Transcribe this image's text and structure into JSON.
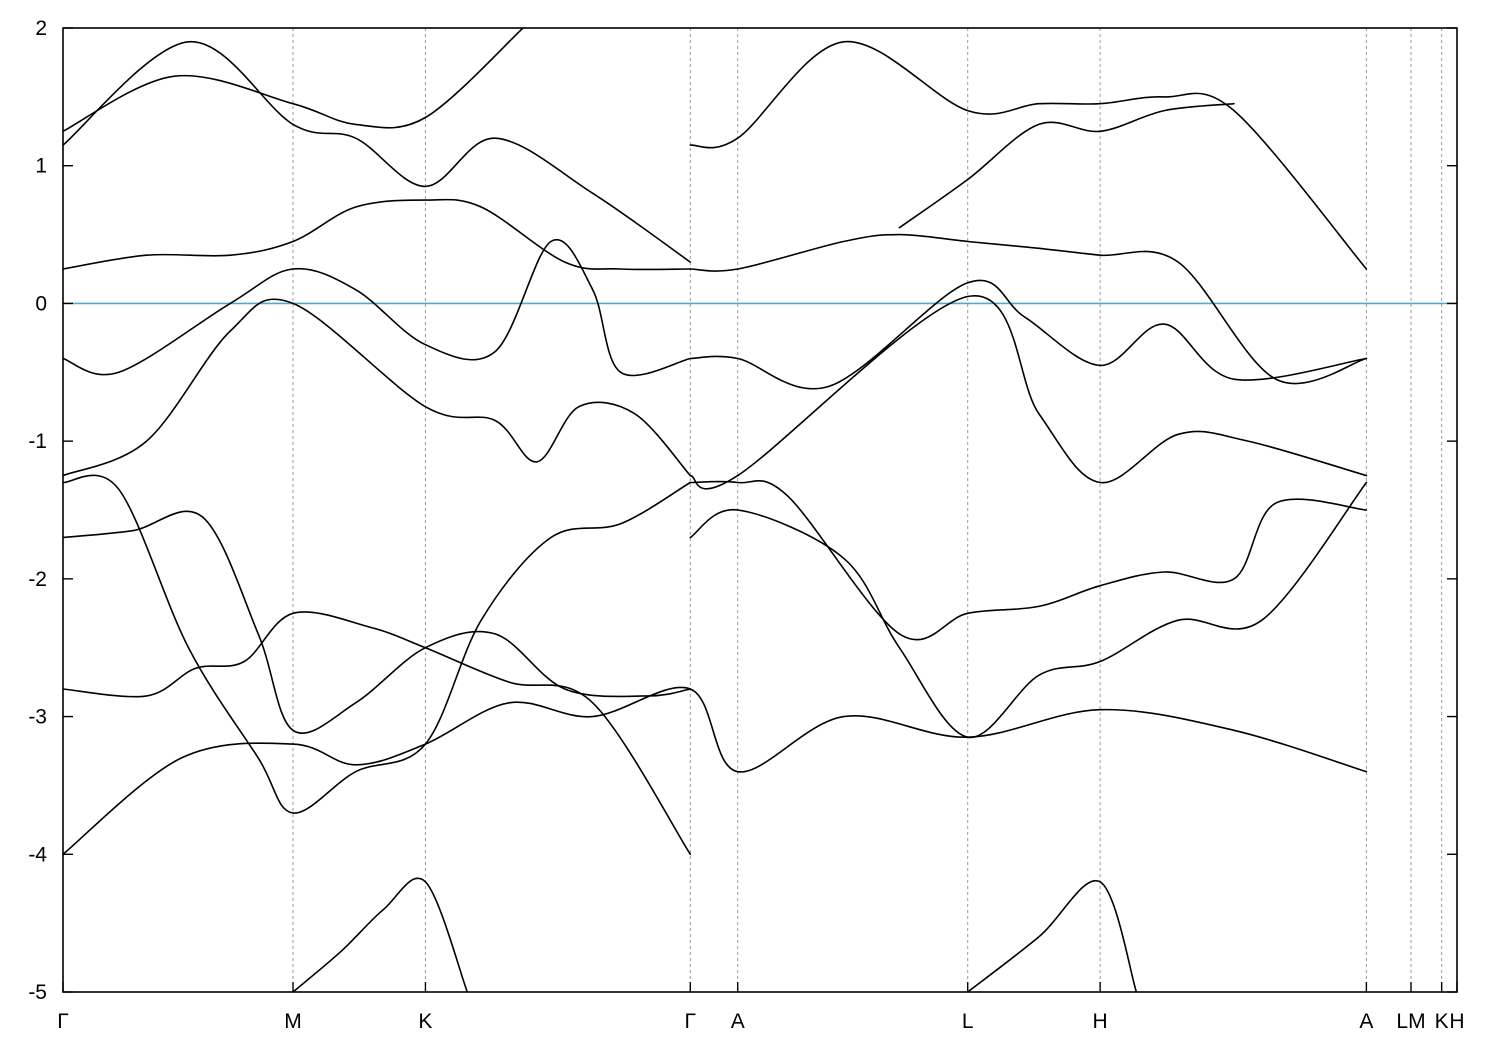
{
  "chart_data": {
    "type": "line",
    "title": "",
    "xlabel": "",
    "ylabel": "",
    "xlim": [
      0,
      1
    ],
    "ylim": [
      -5,
      2
    ],
    "y_ticks": [
      2,
      1,
      0,
      -1,
      -2,
      -3,
      -4,
      -5
    ],
    "y_tick_labels": [
      "2",
      "1",
      "0",
      "-1",
      "-2",
      "-3",
      "-4",
      "-5"
    ],
    "k_points": [
      {
        "label": "Γ",
        "x": 0.0
      },
      {
        "label": "M",
        "x": 0.165
      },
      {
        "label": "K",
        "x": 0.26
      },
      {
        "label": "Γ",
        "x": 0.45
      },
      {
        "label": "A",
        "x": 0.484
      },
      {
        "label": "L",
        "x": 0.649
      },
      {
        "label": "H",
        "x": 0.744
      },
      {
        "label": "A",
        "x": 0.935
      },
      {
        "label": "LM",
        "x": 0.967
      },
      {
        "label": "K",
        "x": 0.989
      },
      {
        "label": "H",
        "x": 1.0
      }
    ],
    "grid": false,
    "reference_line": {
      "y": 0,
      "color": "#55aacc"
    },
    "line_color": "#000000",
    "series": [
      {
        "x": [
          0,
          0.085,
          0.165,
          0.21,
          0.26,
          0.32,
          0.38,
          0.45,
          0.484,
          0.56,
          0.649,
          0.744,
          0.84,
          0.935
        ],
        "y": [
          -4.0,
          -3.3,
          -3.2,
          -3.35,
          -3.2,
          -2.9,
          -3.0,
          -2.8,
          -3.4,
          -3.0,
          -3.15,
          -2.95,
          -3.1,
          -3.4
        ]
      },
      {
        "x": [
          0,
          0.06,
          0.095,
          0.13,
          0.165,
          0.22,
          0.26,
          0.32,
          0.38,
          0.45
        ],
        "y": [
          -2.8,
          -2.85,
          -2.65,
          -2.6,
          -2.25,
          -2.35,
          -2.5,
          -2.75,
          -2.9,
          -4.0
        ]
      },
      {
        "x": [
          0,
          0.05,
          0.1,
          0.14,
          0.165,
          0.21,
          0.26,
          0.31,
          0.36,
          0.42,
          0.45
        ],
        "y": [
          -1.7,
          -1.65,
          -1.55,
          -2.4,
          -3.1,
          -2.9,
          -2.5,
          -2.4,
          -2.8,
          -2.85,
          -2.8
        ]
      },
      {
        "x": [
          0,
          0.04,
          0.09,
          0.14,
          0.165,
          0.21,
          0.26,
          0.3,
          0.35,
          0.4,
          0.45
        ],
        "y": [
          -1.3,
          -1.35,
          -2.5,
          -3.3,
          -3.7,
          -3.4,
          -3.2,
          -2.3,
          -1.7,
          -1.6,
          -1.3
        ]
      },
      {
        "x": [
          0,
          0.06,
          0.12,
          0.165,
          0.26,
          0.31,
          0.34,
          0.37,
          0.41,
          0.45
        ],
        "y": [
          -1.25,
          -1.0,
          -0.2,
          0.0,
          -0.75,
          -0.85,
          -1.15,
          -0.75,
          -0.8,
          -1.25
        ]
      },
      {
        "x": [
          0,
          0.04,
          0.12,
          0.165,
          0.21,
          0.26,
          0.31,
          0.35,
          0.38,
          0.4,
          0.45
        ],
        "y": [
          -0.4,
          -0.5,
          0.0,
          0.25,
          0.1,
          -0.3,
          -0.35,
          0.45,
          0.1,
          -0.5,
          -0.4
        ]
      },
      {
        "x": [
          0,
          0.06,
          0.12,
          0.165,
          0.21,
          0.26,
          0.3,
          0.36,
          0.4,
          0.45
        ],
        "y": [
          0.25,
          0.35,
          0.35,
          0.45,
          0.7,
          0.75,
          0.7,
          0.3,
          0.25,
          0.25
        ]
      },
      {
        "x": [
          0,
          0.09,
          0.165,
          0.21,
          0.26,
          0.31,
          0.38,
          0.45
        ],
        "y": [
          1.15,
          1.9,
          1.3,
          1.2,
          0.85,
          1.2,
          0.8,
          0.3
        ]
      },
      {
        "x": [
          0,
          0.08,
          0.165,
          0.21,
          0.26,
          0.33
        ],
        "y": [
          1.25,
          1.65,
          1.45,
          1.3,
          1.35,
          2.0
        ]
      },
      {
        "x": [
          0.165,
          0.2,
          0.23,
          0.26,
          0.29
        ],
        "y": [
          -5.0,
          -4.7,
          -4.4,
          -4.2,
          -5.0
        ]
      },
      {
        "x": [
          0.45,
          0.484,
          0.56,
          0.6,
          0.649,
          0.7,
          0.744,
          0.8,
          0.87,
          0.935
        ],
        "y": [
          0.25,
          0.25,
          0.45,
          0.5,
          0.45,
          0.4,
          0.35,
          0.3,
          -0.55,
          -0.4
        ]
      },
      {
        "x": [
          0.45,
          0.484,
          0.55,
          0.649,
          0.69,
          0.744,
          0.79,
          0.84,
          0.935
        ],
        "y": [
          -0.4,
          -0.4,
          -0.6,
          0.15,
          -0.1,
          -0.45,
          -0.15,
          -0.55,
          -0.4
        ]
      },
      {
        "x": [
          0.45,
          0.484,
          0.649,
          0.7,
          0.744,
          0.8,
          0.85,
          0.935
        ],
        "y": [
          -1.25,
          -1.25,
          0.05,
          -0.8,
          -1.3,
          -0.95,
          -1.0,
          -1.25
        ]
      },
      {
        "x": [
          0.45,
          0.484,
          0.52,
          0.6,
          0.649,
          0.7,
          0.744,
          0.79,
          0.84,
          0.87,
          0.935
        ],
        "y": [
          -1.3,
          -1.3,
          -1.4,
          -2.4,
          -2.25,
          -2.2,
          -2.05,
          -1.95,
          -2.0,
          -1.45,
          -1.5
        ]
      },
      {
        "x": [
          0.45,
          0.484,
          0.56,
          0.6,
          0.649,
          0.7,
          0.744,
          0.8,
          0.86,
          0.935
        ],
        "y": [
          -1.7,
          -1.5,
          -1.85,
          -2.5,
          -3.15,
          -2.7,
          -2.6,
          -2.3,
          -2.3,
          -1.3
        ]
      },
      {
        "x": [
          0.45,
          0.484,
          0.56,
          0.649,
          0.7,
          0.744,
          0.79,
          0.84,
          0.935
        ],
        "y": [
          1.15,
          1.2,
          1.9,
          1.4,
          1.45,
          1.45,
          1.5,
          1.4,
          0.25
        ]
      },
      {
        "x": [
          0.6,
          0.649,
          0.7,
          0.744,
          0.79,
          0.84
        ],
        "y": [
          0.55,
          0.9,
          1.3,
          1.25,
          1.4,
          1.45
        ]
      },
      {
        "x": [
          0.649,
          0.7,
          0.744,
          0.77
        ],
        "y": [
          -5.0,
          -4.6,
          -4.2,
          -5.0
        ]
      }
    ]
  }
}
